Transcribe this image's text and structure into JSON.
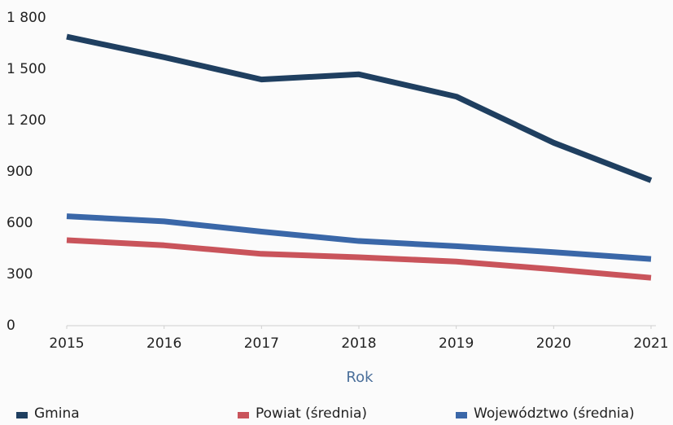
{
  "chart_data": {
    "type": "line",
    "x": [
      2015,
      2016,
      2017,
      2018,
      2019,
      2020,
      2021
    ],
    "xlim": [
      2015,
      2021
    ],
    "xticks": [
      2015,
      2016,
      2017,
      2018,
      2019,
      2020,
      2021
    ],
    "xlabel": "Rok",
    "ylim": [
      0,
      1800
    ],
    "yticks": [
      0,
      300,
      600,
      900,
      {
        "value": 1200,
        "label": "1 200"
      },
      {
        "value": 1500,
        "label": "1 500"
      },
      {
        "value": 1800,
        "label": "1 800"
      }
    ],
    "grid": false,
    "legend": "bottom",
    "series": [
      {
        "name": "Gmina",
        "color": "#1f3f60",
        "values": [
          1690,
          1570,
          1440,
          1470,
          1340,
          1070,
          850
        ]
      },
      {
        "name": "Powiat (średnia)",
        "color": "#c9545b",
        "values": [
          500,
          470,
          420,
          400,
          375,
          330,
          280
        ]
      },
      {
        "name": "Województwo (średnia)",
        "color": "#3a67a8",
        "values": [
          640,
          610,
          550,
          495,
          465,
          430,
          390
        ]
      }
    ]
  }
}
